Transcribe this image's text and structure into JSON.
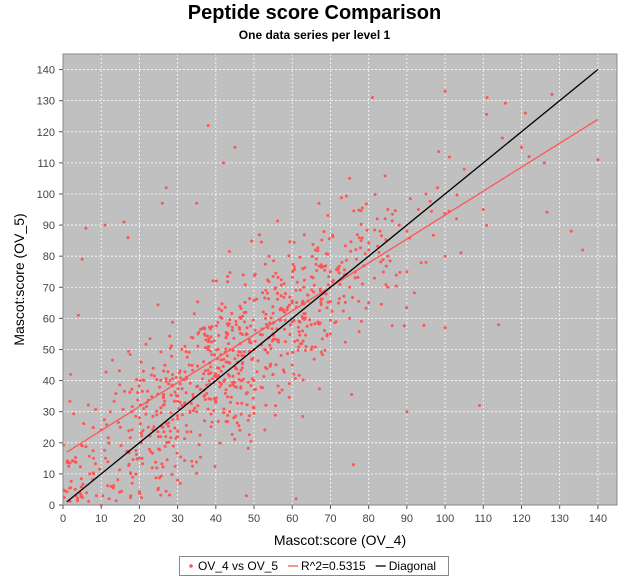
{
  "chart_data": {
    "type": "scatter",
    "title": "Peptide score Comparison",
    "subtitle": "One data series per level 1",
    "xlabel": "Mascot:score (OV_4)",
    "ylabel": "Mascot:score (OV_5)",
    "xlim": [
      0,
      145
    ],
    "ylim": [
      0,
      145
    ],
    "xticks": [
      0,
      10,
      20,
      30,
      40,
      50,
      60,
      70,
      80,
      90,
      100,
      110,
      120,
      130,
      140
    ],
    "yticks": [
      0,
      10,
      20,
      30,
      40,
      50,
      60,
      70,
      80,
      90,
      100,
      110,
      120,
      130,
      140
    ],
    "grid": true,
    "legend_position": "bottom",
    "colors": {
      "plot_bg": "#c0c0c0",
      "scatter": "#ff5555",
      "fit": "#ff5555",
      "diagonal": "#000000"
    },
    "series": [
      {
        "name": "OV_4 vs OV_5",
        "kind": "points",
        "color": "#ff5555",
        "n_points": 900,
        "point_generation": "approximate cloud along the y≈x band with scatter; representative points listed",
        "points": [
          [
            2,
            42
          ],
          [
            4,
            61
          ],
          [
            5,
            79
          ],
          [
            6,
            89
          ],
          [
            11,
            90
          ],
          [
            16,
            91
          ],
          [
            17,
            86
          ],
          [
            26,
            97
          ],
          [
            27,
            102
          ],
          [
            35,
            97
          ],
          [
            38,
            122
          ],
          [
            42,
            110
          ],
          [
            45,
            115
          ],
          [
            67,
            97
          ],
          [
            75,
            105
          ],
          [
            81,
            131
          ],
          [
            100,
            133
          ],
          [
            103,
            92
          ],
          [
            111,
            131
          ],
          [
            121,
            126
          ],
          [
            128,
            132
          ],
          [
            133,
            88
          ],
          [
            136,
            82
          ],
          [
            140,
            111
          ],
          [
            76,
            13
          ],
          [
            90,
            30
          ],
          [
            100,
            57
          ],
          [
            109,
            32
          ],
          [
            114,
            58
          ],
          [
            61,
            2
          ],
          [
            48,
            3
          ],
          [
            5,
            19
          ],
          [
            10,
            0
          ],
          [
            13,
            6
          ],
          [
            30,
            8
          ],
          [
            3,
            14
          ],
          [
            58,
            62
          ],
          [
            70,
            75
          ],
          [
            85,
            95
          ],
          [
            95,
            100
          ],
          [
            110,
            95
          ],
          [
            122,
            112
          ],
          [
            126,
            110
          ],
          [
            50,
            50
          ],
          [
            40,
            42
          ],
          [
            30,
            35
          ],
          [
            20,
            28
          ],
          [
            60,
            65
          ],
          [
            80,
            82
          ],
          [
            25,
            22
          ],
          [
            35,
            38
          ],
          [
            45,
            47
          ],
          [
            55,
            55
          ],
          [
            65,
            58
          ],
          [
            75,
            70
          ],
          [
            85,
            80
          ],
          [
            90,
            88
          ],
          [
            15,
            25
          ],
          [
            18,
            30
          ],
          [
            22,
            33
          ],
          [
            28,
            40
          ],
          [
            33,
            45
          ],
          [
            38,
            50
          ],
          [
            43,
            48
          ],
          [
            48,
            55
          ],
          [
            53,
            60
          ],
          [
            63,
            70
          ],
          [
            68,
            68
          ],
          [
            73,
            78
          ],
          [
            78,
            85
          ],
          [
            83,
            88
          ],
          [
            88,
            90
          ],
          [
            93,
            95
          ],
          [
            98,
            102
          ],
          [
            105,
            108
          ],
          [
            115,
            118
          ],
          [
            120,
            115
          ],
          [
            12,
            20
          ],
          [
            8,
            15
          ],
          [
            7,
            10
          ],
          [
            20,
            15
          ],
          [
            25,
            18
          ],
          [
            30,
            22
          ],
          [
            35,
            30
          ],
          [
            40,
            33
          ],
          [
            45,
            38
          ],
          [
            50,
            40
          ],
          [
            55,
            42
          ],
          [
            60,
            45
          ],
          [
            65,
            50
          ],
          [
            70,
            55
          ],
          [
            75,
            60
          ],
          [
            80,
            65
          ],
          [
            85,
            70
          ],
          [
            90,
            75
          ],
          [
            95,
            78
          ],
          [
            100,
            80
          ]
        ]
      },
      {
        "name": "R^2=0.5315",
        "kind": "line",
        "color": "#ff5555",
        "x": [
          1,
          140
        ],
        "y": [
          17,
          124
        ]
      },
      {
        "name": "Diagonal",
        "kind": "line",
        "color": "#000000",
        "x": [
          1,
          140
        ],
        "y": [
          1,
          140
        ]
      }
    ]
  }
}
